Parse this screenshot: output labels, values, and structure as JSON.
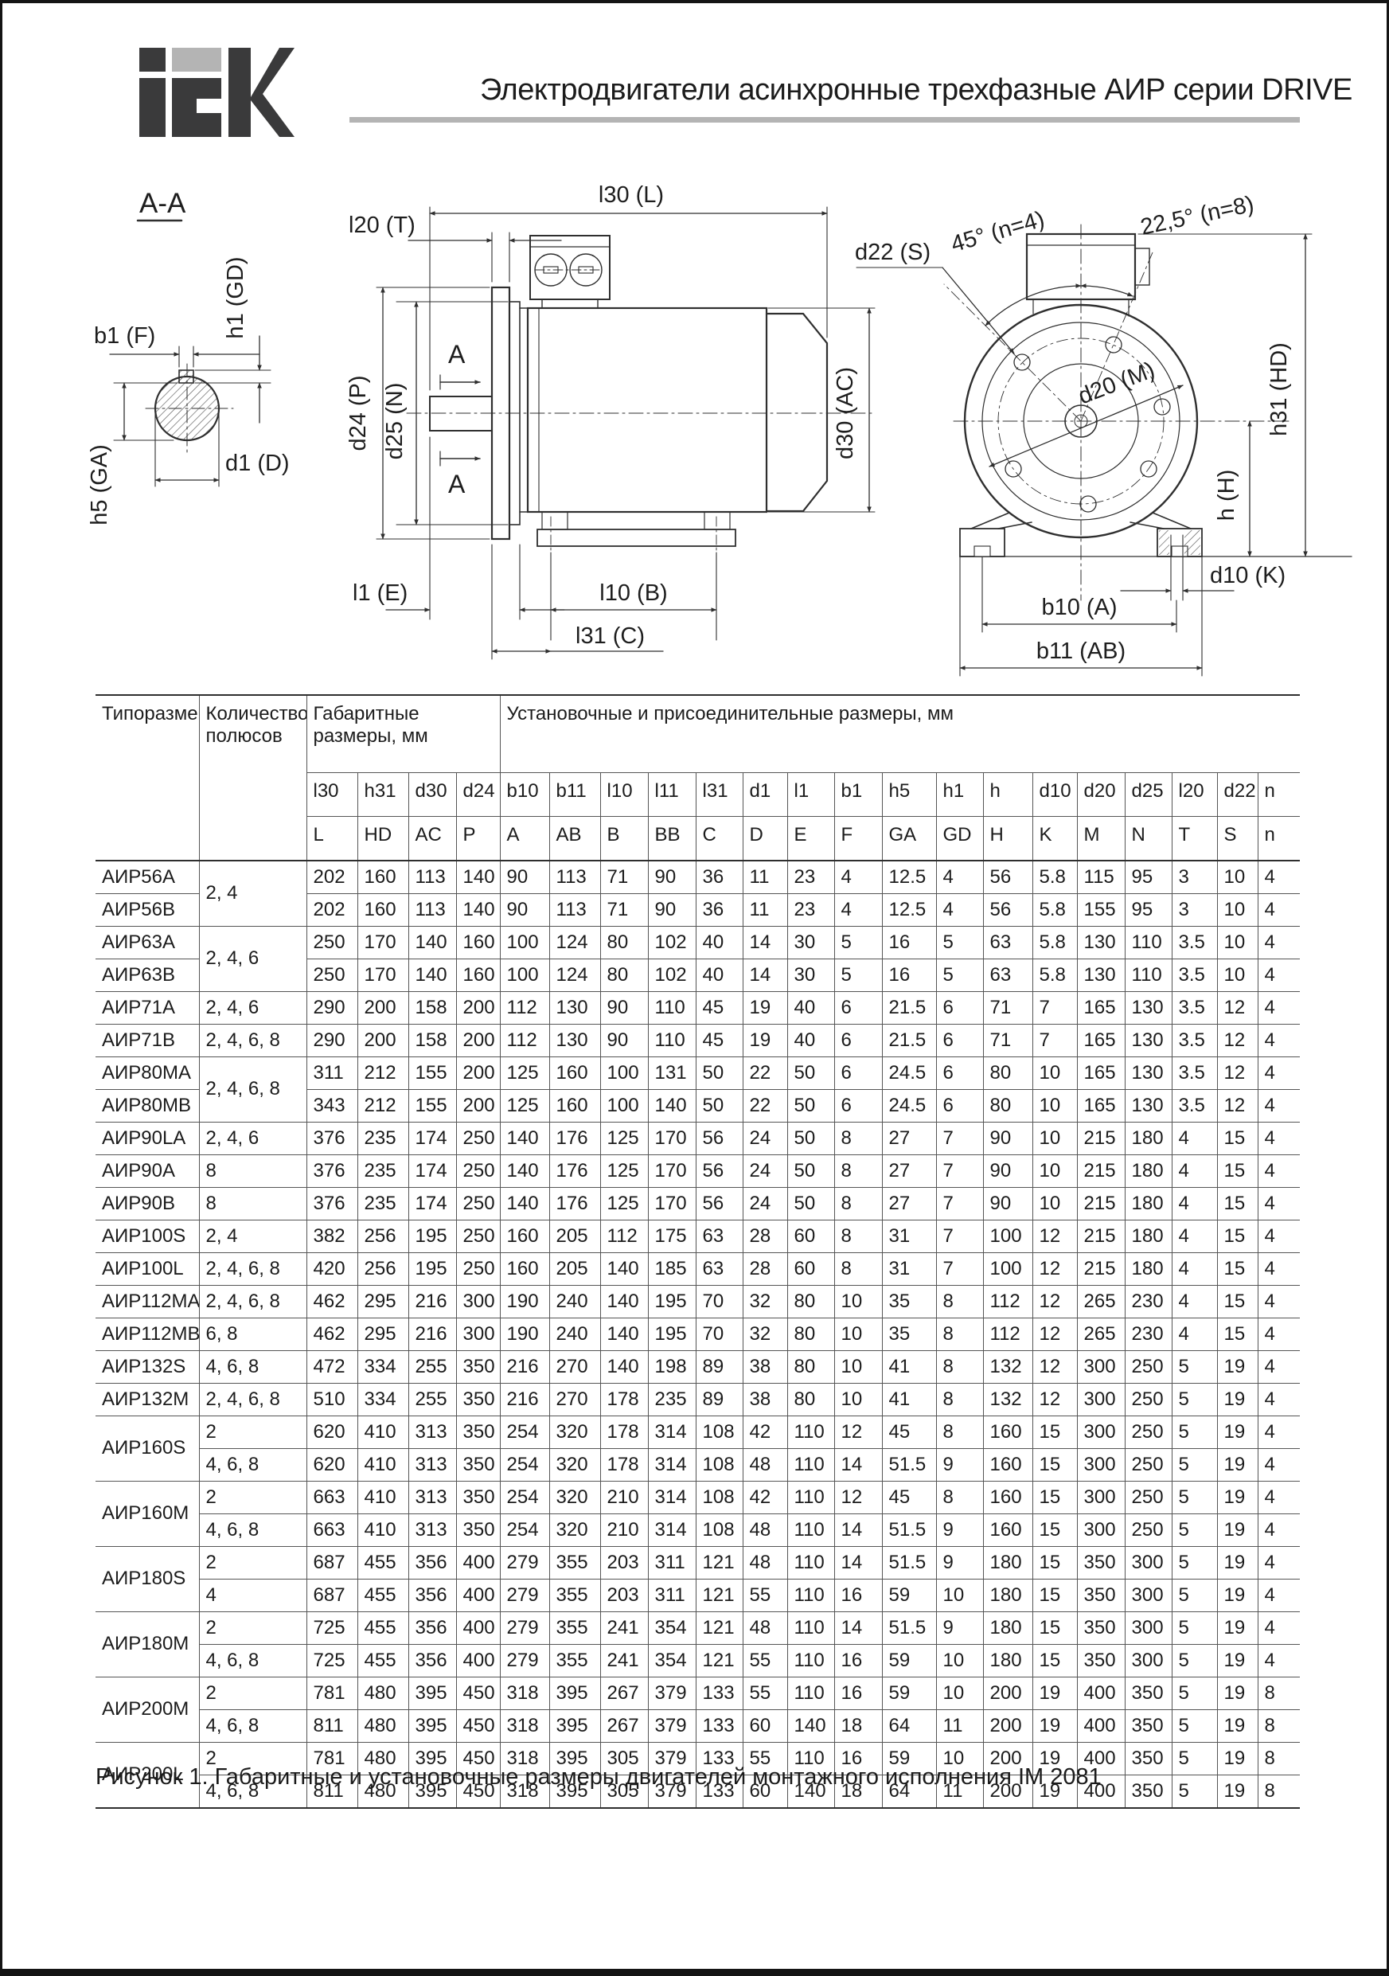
{
  "header": {
    "logo_text": "iEK",
    "title": "Электродвигатели асинхронные трехфазные АИР серии DRIVE"
  },
  "caption": "Рисунок 1. Габаритные и установочные размеры двигателей монтажного исполнения IM 2081",
  "colors": {
    "logo_dark": "#3a3a3b",
    "logo_gray": "#b4b4b4",
    "rule_gray": "#b4b4b4",
    "line": "#2f2f2f"
  },
  "drawings": {
    "shaft_section": {
      "section_label": "A-A",
      "b1": "b1 (F)",
      "h1": "h1 (GD)",
      "d1": "d1 (D)",
      "h5": "h5 (GA)"
    },
    "side_view": {
      "l30": "l30 (L)",
      "l20": "l20 (T)",
      "d24": "d24 (P)",
      "d25": "d25 (N)",
      "d30": "d30 (AC)",
      "l1": "l1 (E)",
      "l10": "l10 (B)",
      "l31": "l31 (C)",
      "a_top": "A",
      "a_bottom": "A"
    },
    "front_view": {
      "d22": "d22 (S)",
      "angle45": "45° (n=4)",
      "angle225": "22,5° (n=8)",
      "d20": "d20 (M)",
      "h31": "h31 (HD)",
      "h": "h (H)",
      "d10": "d10 (K)",
      "b10": "b10 (A)",
      "b11": "b11 (AB)"
    }
  },
  "table": {
    "col_type": "Типоразмер",
    "col_poles": "Количество полюсов",
    "group_dims": "Габаритные размеры, мм",
    "group_mount": "Установочные и присоединительные размеры, мм",
    "sub_headers": [
      "l30",
      "h31",
      "d30",
      "d24",
      "b10",
      "b11",
      "l10",
      "l11",
      "l31",
      "d1",
      "l1",
      "b1",
      "h5",
      "h1",
      "h",
      "d10",
      "d20",
      "d25",
      "l20",
      "d22",
      "n"
    ],
    "letter_headers": [
      "L",
      "HD",
      "AC",
      "P",
      "A",
      "AB",
      "B",
      "BB",
      "C",
      "D",
      "E",
      "F",
      "GA",
      "GD",
      "H",
      "K",
      "M",
      "N",
      "T",
      "S",
      "n"
    ],
    "rows": [
      {
        "t": "АИР56А",
        "p": "2, 4",
        "ps": 2,
        "v": [
          202,
          160,
          113,
          140,
          90,
          113,
          71,
          90,
          36,
          11,
          23,
          4,
          "12.5",
          4,
          56,
          "5.8",
          115,
          95,
          3,
          10,
          4
        ]
      },
      {
        "t": "АИР56В",
        "p": null,
        "v": [
          202,
          160,
          113,
          140,
          90,
          113,
          71,
          90,
          36,
          11,
          23,
          4,
          "12.5",
          4,
          56,
          "5.8",
          155,
          95,
          3,
          10,
          4
        ]
      },
      {
        "t": "АИР63А",
        "p": "2, 4, 6",
        "ps": 2,
        "v": [
          250,
          170,
          140,
          160,
          100,
          124,
          80,
          102,
          40,
          14,
          30,
          5,
          16,
          5,
          63,
          "5.8",
          130,
          110,
          "3.5",
          10,
          4
        ]
      },
      {
        "t": "АИР63В",
        "p": null,
        "v": [
          250,
          170,
          140,
          160,
          100,
          124,
          80,
          102,
          40,
          14,
          30,
          5,
          16,
          5,
          63,
          "5.8",
          130,
          110,
          "3.5",
          10,
          4
        ]
      },
      {
        "t": "АИР71А",
        "p": "2, 4, 6",
        "v": [
          290,
          200,
          158,
          200,
          112,
          130,
          90,
          110,
          45,
          19,
          40,
          6,
          "21.5",
          6,
          71,
          7,
          165,
          130,
          "3.5",
          12,
          4
        ]
      },
      {
        "t": "АИР71В",
        "p": "2, 4, 6, 8",
        "v": [
          290,
          200,
          158,
          200,
          112,
          130,
          90,
          110,
          45,
          19,
          40,
          6,
          "21.5",
          6,
          71,
          7,
          165,
          130,
          "3.5",
          12,
          4
        ]
      },
      {
        "t": "АИР80МА",
        "p": "2, 4, 6, 8",
        "ps": 2,
        "v": [
          311,
          212,
          155,
          200,
          125,
          160,
          100,
          131,
          50,
          22,
          50,
          6,
          "24.5",
          6,
          80,
          10,
          165,
          130,
          "3.5",
          12,
          4
        ]
      },
      {
        "t": "АИР80МВ",
        "p": null,
        "v": [
          343,
          212,
          155,
          200,
          125,
          160,
          100,
          140,
          50,
          22,
          50,
          6,
          "24.5",
          6,
          80,
          10,
          165,
          130,
          "3.5",
          12,
          4
        ]
      },
      {
        "t": "АИР90LA",
        "p": "2, 4, 6",
        "v": [
          376,
          235,
          174,
          250,
          140,
          176,
          125,
          170,
          56,
          24,
          50,
          8,
          27,
          7,
          90,
          10,
          215,
          180,
          4,
          15,
          4
        ]
      },
      {
        "t": "АИР90А",
        "p": "8",
        "v": [
          376,
          235,
          174,
          250,
          140,
          176,
          125,
          170,
          56,
          24,
          50,
          8,
          27,
          7,
          90,
          10,
          215,
          180,
          4,
          15,
          4
        ]
      },
      {
        "t": "АИР90В",
        "p": "8",
        "v": [
          376,
          235,
          174,
          250,
          140,
          176,
          125,
          170,
          56,
          24,
          50,
          8,
          27,
          7,
          90,
          10,
          215,
          180,
          4,
          15,
          4
        ]
      },
      {
        "t": "АИР100S",
        "p": "2, 4",
        "v": [
          382,
          256,
          195,
          250,
          160,
          205,
          112,
          175,
          63,
          28,
          60,
          8,
          31,
          7,
          100,
          12,
          215,
          180,
          4,
          15,
          4
        ]
      },
      {
        "t": "АИР100L",
        "p": "2, 4, 6, 8",
        "v": [
          420,
          256,
          195,
          250,
          160,
          205,
          140,
          185,
          63,
          28,
          60,
          8,
          31,
          7,
          100,
          12,
          215,
          180,
          4,
          15,
          4
        ]
      },
      {
        "t": "АИР112МА",
        "p": "2, 4, 6, 8",
        "v": [
          462,
          295,
          216,
          300,
          190,
          240,
          140,
          195,
          70,
          32,
          80,
          10,
          35,
          8,
          112,
          12,
          265,
          230,
          4,
          15,
          4
        ]
      },
      {
        "t": "АИР112МВ",
        "p": "6, 8",
        "v": [
          462,
          295,
          216,
          300,
          190,
          240,
          140,
          195,
          70,
          32,
          80,
          10,
          35,
          8,
          112,
          12,
          265,
          230,
          4,
          15,
          4
        ]
      },
      {
        "t": "АИР132S",
        "p": "4, 6, 8",
        "v": [
          472,
          334,
          255,
          350,
          216,
          270,
          140,
          198,
          89,
          38,
          80,
          10,
          41,
          8,
          132,
          12,
          300,
          250,
          5,
          19,
          4
        ]
      },
      {
        "t": "АИР132М",
        "p": "2, 4, 6, 8",
        "v": [
          510,
          334,
          255,
          350,
          216,
          270,
          178,
          235,
          89,
          38,
          80,
          10,
          41,
          8,
          132,
          12,
          300,
          250,
          5,
          19,
          4
        ]
      },
      {
        "t": "АИР160S",
        "ts": 2,
        "p": "2",
        "v": [
          620,
          410,
          313,
          350,
          254,
          320,
          178,
          314,
          108,
          42,
          110,
          12,
          45,
          8,
          160,
          15,
          300,
          250,
          5,
          19,
          4
        ]
      },
      {
        "t": null,
        "p": "4, 6, 8",
        "v": [
          620,
          410,
          313,
          350,
          254,
          320,
          178,
          314,
          108,
          48,
          110,
          14,
          "51.5",
          9,
          160,
          15,
          300,
          250,
          5,
          19,
          4
        ]
      },
      {
        "t": "АИР160М",
        "ts": 2,
        "p": "2",
        "v": [
          663,
          410,
          313,
          350,
          254,
          320,
          210,
          314,
          108,
          42,
          110,
          12,
          45,
          8,
          160,
          15,
          300,
          250,
          5,
          19,
          4
        ]
      },
      {
        "t": null,
        "p": "4, 6, 8",
        "v": [
          663,
          410,
          313,
          350,
          254,
          320,
          210,
          314,
          108,
          48,
          110,
          14,
          "51.5",
          9,
          160,
          15,
          300,
          250,
          5,
          19,
          4
        ]
      },
      {
        "t": "АИР180S",
        "ts": 2,
        "p": "2",
        "v": [
          687,
          455,
          356,
          400,
          279,
          355,
          203,
          311,
          121,
          48,
          110,
          14,
          "51.5",
          9,
          180,
          15,
          350,
          300,
          5,
          19,
          4
        ]
      },
      {
        "t": null,
        "p": "4",
        "v": [
          687,
          455,
          356,
          400,
          279,
          355,
          203,
          311,
          121,
          55,
          110,
          16,
          59,
          10,
          180,
          15,
          350,
          300,
          5,
          19,
          4
        ]
      },
      {
        "t": "АИР180М",
        "ts": 2,
        "p": "2",
        "v": [
          725,
          455,
          356,
          400,
          279,
          355,
          241,
          354,
          121,
          48,
          110,
          14,
          "51.5",
          9,
          180,
          15,
          350,
          300,
          5,
          19,
          4
        ]
      },
      {
        "t": null,
        "p": "4, 6, 8",
        "v": [
          725,
          455,
          356,
          400,
          279,
          355,
          241,
          354,
          121,
          55,
          110,
          16,
          59,
          10,
          180,
          15,
          350,
          300,
          5,
          19,
          4
        ]
      },
      {
        "t": "АИР200М",
        "ts": 2,
        "p": "2",
        "v": [
          781,
          480,
          395,
          450,
          318,
          395,
          267,
          379,
          133,
          55,
          110,
          16,
          59,
          10,
          200,
          19,
          400,
          350,
          5,
          19,
          8
        ]
      },
      {
        "t": null,
        "p": "4, 6, 8",
        "v": [
          811,
          480,
          395,
          450,
          318,
          395,
          267,
          379,
          133,
          60,
          140,
          18,
          64,
          11,
          200,
          19,
          400,
          350,
          5,
          19,
          8
        ]
      },
      {
        "t": "АИР200L",
        "ts": 2,
        "p": "2",
        "v": [
          781,
          480,
          395,
          450,
          318,
          395,
          305,
          379,
          133,
          55,
          110,
          16,
          59,
          10,
          200,
          19,
          400,
          350,
          5,
          19,
          8
        ]
      },
      {
        "t": null,
        "p": "4, 6, 8",
        "v": [
          811,
          480,
          395,
          450,
          318,
          395,
          305,
          379,
          133,
          60,
          140,
          18,
          64,
          11,
          200,
          19,
          400,
          350,
          5,
          19,
          8
        ]
      }
    ]
  }
}
